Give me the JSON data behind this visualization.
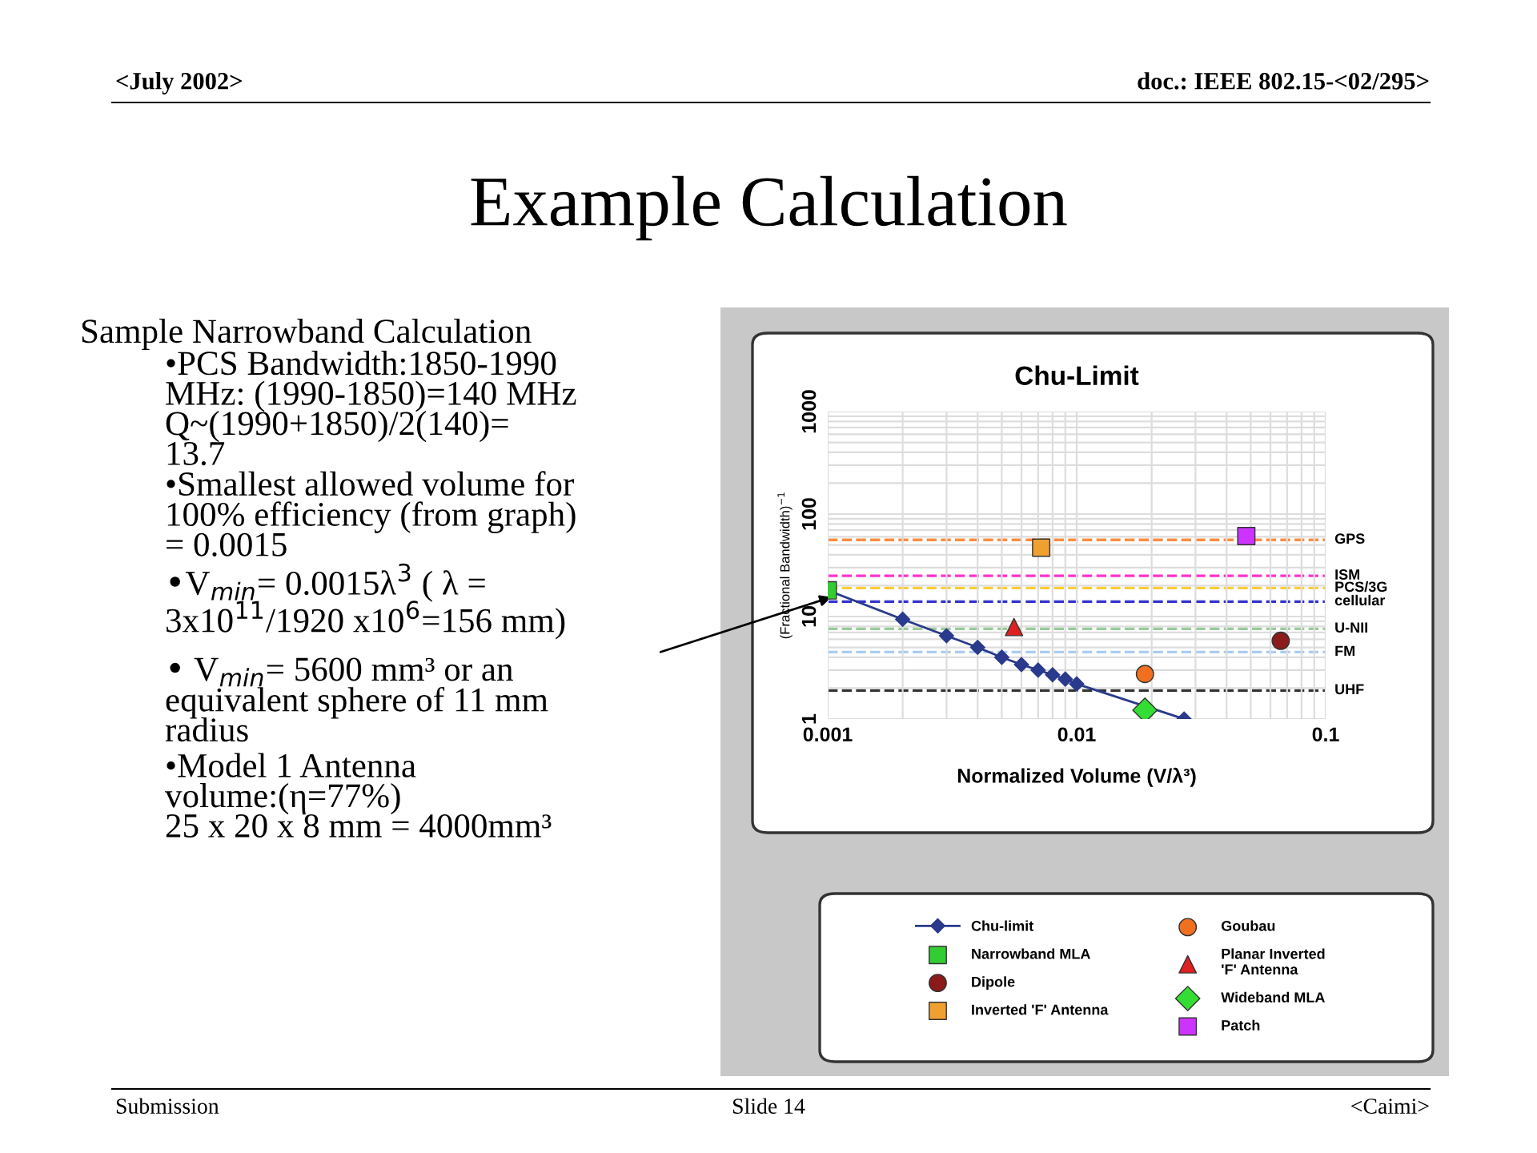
{
  "chart_data": {
    "type": "scatter",
    "title": "Chu-Limit",
    "xlabel": "Normalized Volume (V/λ³)",
    "ylabel": "(Fractional Bandwidth)$^{−1}$",
    "log": "xy",
    "xlim": [
      0.001,
      0.1
    ],
    "xticks": [
      0.001,
      0.01,
      0.1
    ],
    "ylim": [
      1,
      1000
    ],
    "yticks": [
      1,
      10,
      100,
      1000
    ],
    "grid": true,
    "legend": "bottom",
    "series": [
      {
        "name": "Chu-limit",
        "type": "line",
        "marker": "diamond",
        "color": "#2a3a8c",
        "x": [
          0.001,
          0.002,
          0.003,
          0.004,
          0.005,
          0.006,
          0.007,
          0.008,
          0.009,
          0.01,
          0.027
        ],
        "values": [
          18,
          9.4,
          6.5,
          5.0,
          4.0,
          3.4,
          3.0,
          2.7,
          2.45,
          2.2,
          1
        ]
      },
      {
        "name": "Narrowband MLA",
        "marker": "square",
        "color": "#33cc33",
        "x": [
          0.001
        ],
        "values": [
          18
        ]
      },
      {
        "name": "Dipole",
        "marker": "circle",
        "color": "#8b1a1a",
        "x": [
          0.066
        ],
        "values": [
          5.8
        ]
      },
      {
        "name": "Inverted 'F' Antenna",
        "marker": "square",
        "color": "#f0a030",
        "x": [
          0.0072
        ],
        "values": [
          47
        ]
      },
      {
        "name": "Goubau",
        "marker": "circle",
        "color": "#f07020",
        "x": [
          0.0188
        ],
        "values": [
          2.75
        ]
      },
      {
        "name": "Planar Inverted\n'F' Antenna",
        "marker": "triangle",
        "color": "#e02020",
        "x": [
          0.0056
        ],
        "values": [
          7.9
        ]
      },
      {
        "name": "Wideband MLA",
        "marker": "diamond",
        "color": "#33dd33",
        "x": [
          0.0188
        ],
        "values": [
          1.22
        ]
      },
      {
        "name": "Patch",
        "marker": "square",
        "color": "#cc33ff",
        "x": [
          0.048
        ],
        "values": [
          61
        ]
      }
    ],
    "ref_lines": [
      {
        "axis": "y",
        "value": 56,
        "label": "GPS",
        "color": "#ff8c40",
        "line_style": "dashed"
      },
      {
        "axis": "y",
        "value": 25,
        "label": "ISM",
        "color": "#ff33cc",
        "line_style": "dashed"
      },
      {
        "axis": "y",
        "value": 19,
        "label": "PCS/3G",
        "color": "#ffcc33",
        "line_style": "dashed"
      },
      {
        "axis": "y",
        "value": 14,
        "label": "cellular",
        "color": "#3333cc",
        "line_style": "dashed"
      },
      {
        "axis": "y",
        "value": 7.6,
        "label": "U-NII",
        "color": "#99cc99",
        "line_style": "dashed"
      },
      {
        "axis": "y",
        "value": 4.5,
        "label": "FM",
        "color": "#aaccee",
        "line_style": "dashed"
      },
      {
        "axis": "y",
        "value": 1.9,
        "label": "UHF",
        "color": "#333333",
        "line_style": "dashed"
      }
    ],
    "annotations": [
      "<July 2002>",
      "doc.: IEEE 802.15-<02/295>",
      "Example Calculation",
      "Sample Narrowband Calculation",
      "•PCS Bandwidth:1850-1990\nMHz: (1990-1850)=140 MHz\nQ~(1990+1850)/2(140)=\n13.7",
      "•Smallest allowed volume for\n100% efficiency (from graph)\n= 0.0015",
      "•V$_{min}$= 0.0015λ$^{3}$ ( λ =\n3x10$^{11}$/1920 x10$^{6}$=156 mm)",
      "• V$_{min}$= 5600 mm³ or an\nequivalent sphere of 11 mm\nradius",
      "•Model 1 Antenna\nvolume:(η=77%)\n25 x 20 x 8 mm = 4000mm³",
      "Submission",
      "Slide 14",
      "<Caimi>"
    ]
  }
}
